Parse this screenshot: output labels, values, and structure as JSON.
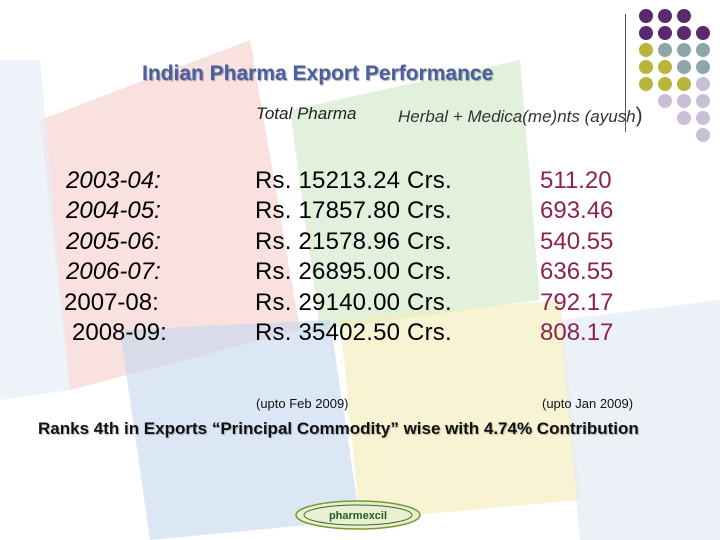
{
  "title": "Indian Pharma Export Performance",
  "headers": {
    "total": "Total Pharma",
    "herbal": "Herbal + Medica(me)nts (ayush",
    "herbal_paren": ")"
  },
  "rows": [
    {
      "year": "2003-04:",
      "total": "Rs. 15213.24 Crs.",
      "ayush": "511.20"
    },
    {
      "year": "2004-05:",
      "total": "Rs. 17857.80 Crs.",
      "ayush": "693.46"
    },
    {
      "year": "2005-06:",
      "total": "Rs. 21578.96 Crs.",
      "ayush": "540.55"
    },
    {
      "year": "2006-07:",
      "total": "Rs. 26895.00 Crs.",
      "ayush": "636.55"
    },
    {
      "year": "2007-08:",
      "total": "Rs. 29140.00 Crs.",
      "ayush": "792.17"
    },
    {
      "year": "2008-09:",
      "total": "Rs. 35402.50 Crs.",
      "ayush": "808.17"
    }
  ],
  "notes": {
    "total": "(upto Feb 2009)",
    "ayush": "(upto Jan 2009)"
  },
  "ranks_text": "Ranks 4th in Exports “Principal Commodity” wise with 4.74% Contribution",
  "logo_text": "pharmexcil",
  "colors": {
    "title": "#4a5fa0",
    "ayush": "#8b2350",
    "dot_purple": "#5b2a6e",
    "dot_teal": "#8fa6a8",
    "dot_olive": "#b9b53a",
    "dot_lavender": "#c9bfd6"
  }
}
